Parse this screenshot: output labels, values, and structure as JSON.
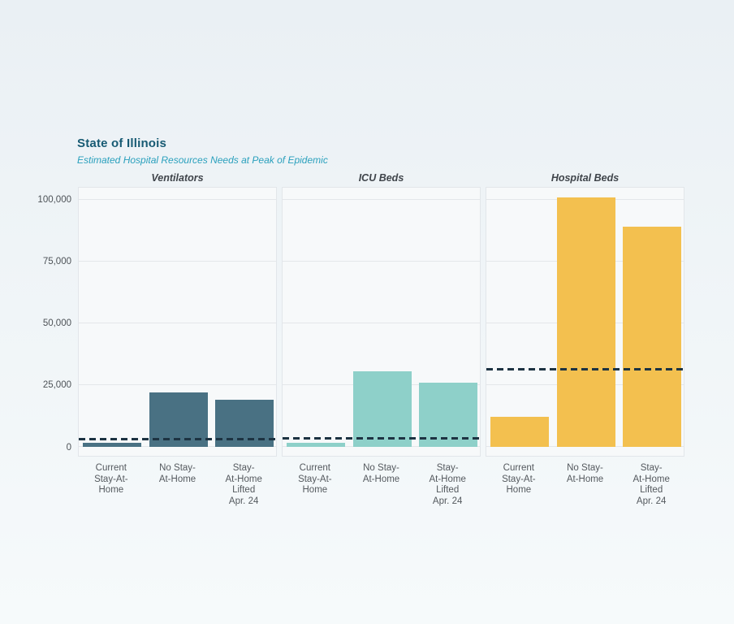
{
  "page": {
    "background_top_color": "#eaf0f4",
    "background_bottom_color": "#f6fafb"
  },
  "header": {
    "title": "State of Illinois",
    "subtitle": "Estimated Hospital Resources Needs at Peak of Epidemic",
    "title_color": "#175a73",
    "subtitle_color": "#2aa0bd"
  },
  "chart_data": {
    "type": "bar",
    "title": "State of Illinois",
    "subtitle": "Estimated Hospital Resources Needs at Peak of Epidemic",
    "categories": [
      "Current Stay-At-Home",
      "No Stay-At-Home",
      "Stay-At-Home Lifted Apr. 24"
    ],
    "category_tick_lines": [
      [
        "Current",
        "Stay-At-",
        "Home"
      ],
      [
        "No Stay-",
        "At-Home"
      ],
      [
        "Stay-",
        "At-Home",
        "Lifted",
        "Apr. 24"
      ]
    ],
    "y_axis": {
      "ticks": [
        0,
        25000,
        50000,
        75000,
        100000
      ],
      "tick_labels": [
        "0",
        "25,000",
        "50,000",
        "75,000",
        "100,000"
      ],
      "ylim": [
        0,
        105000
      ]
    },
    "panels": [
      {
        "title": "Ventilators",
        "bar_color": "#497183",
        "values": [
          1500,
          22000,
          19000
        ],
        "dashed_reference_value": 3000
      },
      {
        "title": "ICU Beds",
        "bar_color": "#8ed0c9",
        "values": [
          1600,
          30500,
          26000
        ],
        "dashed_reference_value": 3400
      },
      {
        "title": "Hospital Beds",
        "bar_color": "#f3c04f",
        "values": [
          12000,
          101000,
          89000
        ],
        "dashed_reference_value": 31200
      }
    ],
    "dashed_reference_line_color": "#1d3342",
    "grid": true,
    "legend": false,
    "gridline_color": "#e4e7ea",
    "panel_background": "#f7f9fa",
    "panel_border_color": "#e2e6ea"
  }
}
